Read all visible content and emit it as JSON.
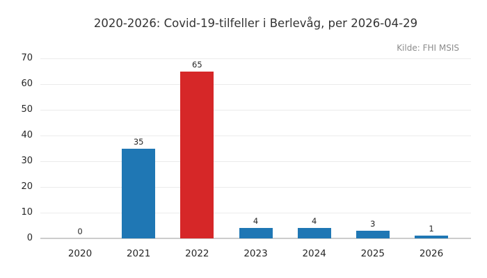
{
  "header": {
    "title": "2020-2026: Covid-19-tilfeller i Berlevåg, per 2026-04-29",
    "source": "Kilde: FHI MSIS"
  },
  "colors": {
    "bar_default": "#1f77b4",
    "bar_highlight": "#d62728",
    "gridline": "#ebebeb",
    "axis_line": "#cccccc",
    "text_dark": "#262626",
    "text_muted": "#8c8c8c"
  },
  "chart_data": {
    "type": "bar",
    "title": "2020-2026: Covid-19-tilfeller i Berlevåg, per 2026-04-29",
    "annotation": "Kilde: FHI MSIS",
    "annotation_position": "top-right",
    "categories": [
      "2020",
      "2021",
      "2022",
      "2023",
      "2024",
      "2025",
      "2026"
    ],
    "values": [
      0,
      35,
      65,
      4,
      4,
      3,
      1
    ],
    "data_labels": [
      "0",
      "35",
      "65",
      "4",
      "4",
      "3",
      "1"
    ],
    "bar_colors": [
      "#1f77b4",
      "#1f77b4",
      "#d62728",
      "#1f77b4",
      "#1f77b4",
      "#1f77b4",
      "#1f77b4"
    ],
    "xlabel": "",
    "ylabel": "",
    "ylim": [
      0,
      70
    ],
    "yticks": [
      0,
      10,
      20,
      30,
      40,
      50,
      60,
      70
    ],
    "grid": true,
    "grid_axis": "y",
    "legend": false
  }
}
